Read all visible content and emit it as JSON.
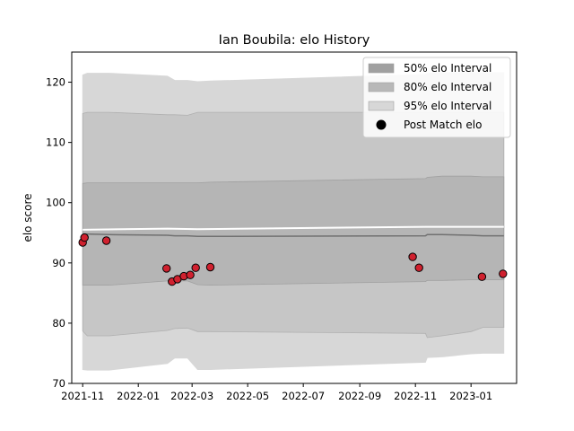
{
  "chart_data": {
    "type": "scatter",
    "title": "Ian Boubila: elo History",
    "xlabel": "",
    "ylabel": "elo score",
    "xlim": [
      "2021-10-20",
      "2023-02-20"
    ],
    "ylim": [
      70,
      125
    ],
    "x_ticks": [
      "2021-11",
      "2022-01",
      "2022-03",
      "2022-05",
      "2022-07",
      "2022-09",
      "2022-11",
      "2023-01"
    ],
    "y_ticks": [
      70,
      80,
      90,
      100,
      110,
      120
    ],
    "grid": false,
    "legend_position": "top-right",
    "legend": [
      {
        "label": "50% elo Interval",
        "kind": "band",
        "color": "#a0a0a0"
      },
      {
        "label": "80% elo Interval",
        "kind": "band",
        "color": "#b8b8b8"
      },
      {
        "label": "95% elo Interval",
        "kind": "band",
        "color": "#d7d7d7"
      },
      {
        "label": "Post Match elo",
        "kind": "marker",
        "color": "#000000"
      }
    ],
    "bands": {
      "x": [
        "2021-11-01",
        "2021-11-06",
        "2021-11-30",
        "2022-02-02",
        "2022-02-10",
        "2022-02-24",
        "2022-03-07",
        "2022-03-21",
        "2022-11-12",
        "2022-11-14",
        "2022-11-30",
        "2023-01-01",
        "2023-01-14",
        "2023-02-06"
      ],
      "p95_upper": [
        121.2,
        121.5,
        121.5,
        121.0,
        120.3,
        120.3,
        120.1,
        120.2,
        121.3,
        121.5,
        121.6,
        121.6,
        121.6,
        121.6
      ],
      "p80_upper": [
        114.8,
        115.0,
        115.0,
        114.6,
        114.6,
        114.5,
        115.0,
        115.0,
        115.0,
        115.0,
        115.0,
        115.0,
        115.0,
        115.0
      ],
      "p50_upper": [
        103.2,
        103.3,
        103.3,
        103.3,
        103.3,
        103.3,
        103.3,
        103.4,
        104.0,
        104.2,
        104.4,
        104.4,
        104.3,
        104.3
      ],
      "median": [
        94.8,
        94.8,
        94.7,
        94.6,
        94.5,
        94.5,
        94.4,
        94.4,
        94.5,
        94.7,
        94.7,
        94.6,
        94.5,
        94.5
      ],
      "p50_lower": [
        86.3,
        86.3,
        86.3,
        87.0,
        87.0,
        87.0,
        86.4,
        86.3,
        86.9,
        87.1,
        87.1,
        87.2,
        87.2,
        87.2
      ],
      "p80_lower": [
        78.7,
        77.9,
        77.9,
        78.8,
        79.1,
        79.2,
        78.6,
        78.6,
        78.3,
        77.6,
        77.9,
        78.6,
        79.3,
        79.3
      ],
      "p95_lower": [
        72.3,
        72.2,
        72.2,
        73.3,
        74.2,
        74.2,
        72.3,
        72.3,
        73.5,
        74.3,
        74.4,
        74.9,
        75.0,
        75.0
      ],
      "p50_color": "#a0a0a0",
      "p80_color": "#b8b8b8",
      "p95_color": "#d7d7d7",
      "median_color": "#707070"
    },
    "reference_line": {
      "x": [
        "2021-11-01",
        "2022-02-02",
        "2022-03-07",
        "2022-11-12",
        "2023-02-06"
      ],
      "y": [
        95.5,
        95.7,
        95.6,
        96.0,
        96.0
      ],
      "color": "#ffffff"
    },
    "series": [
      {
        "color": "#d0212f",
        "edge_color": "#000000",
        "points": [
          {
            "x": "2021-11-01",
            "y": 93.4
          },
          {
            "x": "2021-11-03",
            "y": 94.2
          },
          {
            "x": "2021-11-27",
            "y": 93.7
          },
          {
            "x": "2022-02-01",
            "y": 89.1
          },
          {
            "x": "2022-02-07",
            "y": 86.9
          },
          {
            "x": "2022-02-13",
            "y": 87.3
          },
          {
            "x": "2022-02-20",
            "y": 87.8
          },
          {
            "x": "2022-02-27",
            "y": 88.0
          },
          {
            "x": "2022-03-05",
            "y": 89.2
          },
          {
            "x": "2022-03-21",
            "y": 89.3
          },
          {
            "x": "2022-10-29",
            "y": 91.0
          },
          {
            "x": "2022-11-05",
            "y": 89.2
          },
          {
            "x": "2023-01-13",
            "y": 87.7
          },
          {
            "x": "2023-02-05",
            "y": 88.2
          }
        ]
      }
    ]
  }
}
